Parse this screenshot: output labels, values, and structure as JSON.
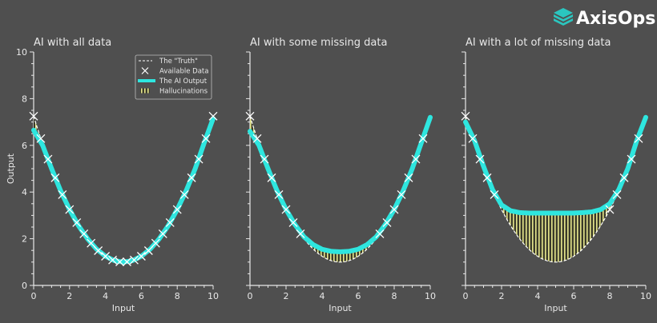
{
  "brand": {
    "name": "AxisOps",
    "logo_color": "#2bc6bf"
  },
  "colors": {
    "background": "#4f4f4f",
    "ai_output": "#2ee6df",
    "truth": "#ffffff",
    "data": "#ffffff",
    "hallucination": "#e6e68c"
  },
  "legend": {
    "placement": "upper-right of first panel",
    "items": [
      {
        "label": "The \"Truth\"",
        "style": "dashed-line"
      },
      {
        "label": "Available Data",
        "style": "x-marker"
      },
      {
        "label": "The AI Output",
        "style": "thick-line"
      },
      {
        "label": "Hallucinations",
        "style": "hatched"
      }
    ]
  },
  "chart_data": [
    {
      "type": "line",
      "title": "AI with all data",
      "xlabel": "Input",
      "ylabel": "Output",
      "xlim": [
        0,
        10
      ],
      "ylim": [
        0,
        10
      ],
      "xticks": [
        "0",
        "2",
        "4",
        "6",
        "8",
        "10"
      ],
      "yticks": [
        "0",
        "2",
        "4",
        "6",
        "8",
        "10"
      ],
      "grid": false,
      "truth": "y = 1 + 0.25*(x-5)^2",
      "available_data_x": [
        0,
        0.4,
        0.8,
        1.2,
        1.6,
        2.0,
        2.4,
        2.8,
        3.2,
        3.6,
        4.0,
        4.4,
        4.8,
        5.2,
        5.6,
        6.0,
        6.4,
        6.8,
        7.2,
        7.6,
        8.0,
        8.4,
        8.8,
        9.2,
        9.6,
        10
      ],
      "ai_output": {
        "x": [
          0,
          0.5,
          1,
          1.5,
          2,
          2.5,
          3,
          3.5,
          4,
          4.5,
          5,
          5.5,
          6,
          6.5,
          7,
          7.5,
          8,
          8.5,
          9,
          9.5,
          10
        ],
        "y": [
          6.65,
          6.0,
          5.0,
          4.06,
          3.25,
          2.56,
          2.0,
          1.56,
          1.25,
          1.06,
          1.0,
          1.06,
          1.25,
          1.56,
          2.0,
          2.56,
          3.25,
          4.06,
          5.0,
          6.1,
          7.15
        ]
      }
    },
    {
      "type": "line",
      "title": "AI with some missing data",
      "xlabel": "Input",
      "ylabel": "",
      "xlim": [
        0,
        10
      ],
      "ylim": [
        0,
        10
      ],
      "xticks": [
        "0",
        "2",
        "4",
        "6",
        "8",
        "10"
      ],
      "yticks": [],
      "grid": false,
      "truth": "y = 1 + 0.25*(x-5)^2",
      "available_data_x": [
        0,
        0.4,
        0.8,
        1.2,
        1.6,
        2.0,
        2.4,
        2.8,
        7.2,
        7.6,
        8.0,
        8.4,
        8.8,
        9.2,
        9.6
      ],
      "ai_output": {
        "x": [
          0,
          0.5,
          1,
          1.5,
          2,
          2.5,
          3,
          3.5,
          4,
          4.5,
          5,
          5.5,
          6,
          6.5,
          7,
          7.5,
          8,
          8.5,
          9,
          9.5,
          10
        ],
        "y": [
          6.6,
          6.0,
          5.0,
          4.06,
          3.25,
          2.6,
          2.08,
          1.75,
          1.55,
          1.46,
          1.44,
          1.46,
          1.55,
          1.75,
          2.08,
          2.6,
          3.25,
          4.06,
          5.0,
          6.1,
          7.2
        ]
      }
    },
    {
      "type": "line",
      "title": "AI with a lot of missing data",
      "xlabel": "Input",
      "ylabel": "",
      "xlim": [
        0,
        10
      ],
      "ylim": [
        0,
        10
      ],
      "xticks": [
        "0",
        "2",
        "4",
        "6",
        "8",
        "10"
      ],
      "yticks": [],
      "grid": false,
      "truth": "y = 1 + 0.25*(x-5)^2",
      "available_data_x": [
        0,
        0.4,
        0.8,
        1.2,
        1.6,
        8.0,
        8.4,
        8.8,
        9.2,
        9.6
      ],
      "ai_output": {
        "x": [
          0,
          0.5,
          1,
          1.5,
          2,
          2.5,
          3,
          3.5,
          4,
          4.5,
          5,
          5.5,
          6,
          6.5,
          7,
          7.5,
          8,
          8.5,
          9,
          9.5,
          10
        ],
        "y": [
          7.0,
          6.2,
          5.1,
          4.1,
          3.45,
          3.2,
          3.12,
          3.1,
          3.1,
          3.1,
          3.1,
          3.1,
          3.1,
          3.12,
          3.15,
          3.25,
          3.5,
          4.1,
          5.0,
          6.2,
          7.2
        ]
      }
    }
  ]
}
